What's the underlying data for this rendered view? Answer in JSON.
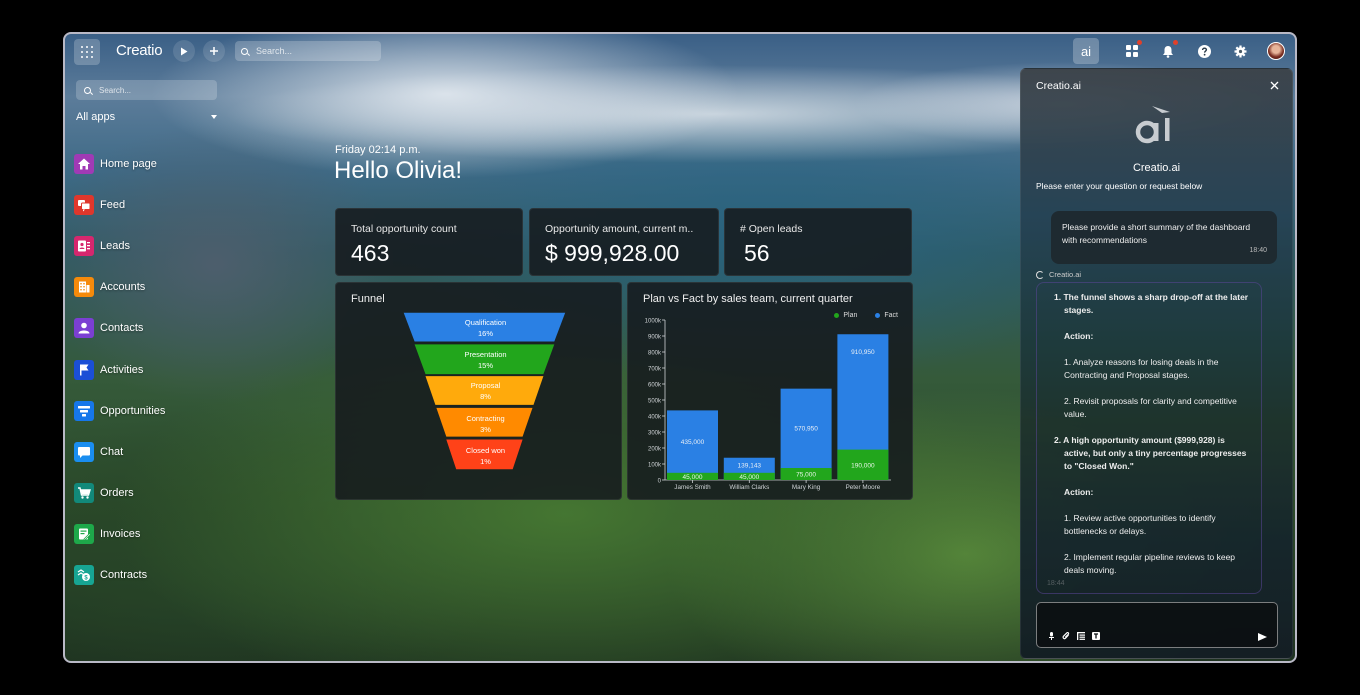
{
  "topbar": {
    "app_name": "Creatio",
    "run_icon": "play-icon",
    "add_icon": "plus-icon",
    "search_placeholder": "Search...",
    "ai_button_label": "ai",
    "icons": [
      "app-grid-icon",
      "bell-icon",
      "help-icon",
      "gear-icon",
      "avatar"
    ]
  },
  "sidebar": {
    "search_placeholder": "Search...",
    "section_label": "All apps",
    "items": [
      {
        "label": "Home page",
        "icon": "home-icon",
        "color": "#a03ab5"
      },
      {
        "label": "Feed",
        "icon": "feed-icon",
        "color": "#e0372c"
      },
      {
        "label": "Leads",
        "icon": "leads-icon",
        "color": "#d6276e"
      },
      {
        "label": "Accounts",
        "icon": "accounts-icon",
        "color": "#f58a0b"
      },
      {
        "label": "Contacts",
        "icon": "contacts-icon",
        "color": "#7b3fd3"
      },
      {
        "label": "Activities",
        "icon": "activities-icon",
        "color": "#1b4fd6"
      },
      {
        "label": "Opportunities",
        "icon": "opportunities-icon",
        "color": "#1677ea"
      },
      {
        "label": "Chat",
        "icon": "chat-icon",
        "color": "#1a8ef0"
      },
      {
        "label": "Orders",
        "icon": "orders-icon",
        "color": "#12897a"
      },
      {
        "label": "Invoices",
        "icon": "invoices-icon",
        "color": "#1ea84a"
      },
      {
        "label": "Contracts",
        "icon": "contracts-icon",
        "color": "#17a593"
      }
    ]
  },
  "greeting": {
    "time": "Friday 02:14 p.m.",
    "hello": "Hello Olivia!"
  },
  "kpis": [
    {
      "title": "Total opportunity count",
      "value": "463"
    },
    {
      "title": "Opportunity amount, current m..",
      "value": "$ 999,928.00"
    },
    {
      "title": "# Open leads",
      "value": "56"
    }
  ],
  "funnel": {
    "title": "Funnel",
    "stages": [
      {
        "label": "Qualification",
        "pct": "16%",
        "color": "#2a80e4"
      },
      {
        "label": "Presentation",
        "pct": "15%",
        "color": "#22a61c"
      },
      {
        "label": "Proposal",
        "pct": "8%",
        "color": "#ffaa0c"
      },
      {
        "label": "Contracting",
        "pct": "3%",
        "color": "#ff8a00"
      },
      {
        "label": "Closed won",
        "pct": "1%",
        "color": "#ff4218"
      }
    ]
  },
  "bar_chart": {
    "title": "Plan vs Fact by sales team, current quarter",
    "legend": [
      {
        "label": "Plan",
        "color": "#22a61c"
      },
      {
        "label": "Fact",
        "color": "#2a80e4"
      }
    ]
  },
  "chart_data": {
    "type": "bar",
    "title": "Plan vs Fact by sales team, current quarter",
    "categories": [
      "James Smith",
      "William Clarks",
      "Mary King",
      "Peter Moore"
    ],
    "series": [
      {
        "name": "Plan",
        "color": "#22a61c",
        "values": [
          45000,
          45000,
          75000,
          190000
        ]
      },
      {
        "name": "Fact",
        "color": "#2a80e4",
        "values": [
          435000,
          139143,
          570950,
          910950
        ]
      }
    ],
    "yticks": [
      "0",
      "100k",
      "200k",
      "300k",
      "400k",
      "500k",
      "600k",
      "700k",
      "800k",
      "900k",
      "1000k"
    ],
    "ylim": [
      0,
      1000000
    ],
    "xlabel": "",
    "ylabel": "",
    "legend_position": "top-right",
    "grid": false,
    "stacked_overlay": true,
    "bar_labels": {
      "Plan": [
        "45,000",
        "45,000",
        "75,000",
        "190,000"
      ],
      "Fact": [
        "435,000",
        "139,143",
        "570,950",
        "910,950"
      ]
    }
  },
  "ai_panel": {
    "header_title": "Creatio.ai",
    "close_icon": "close-icon",
    "logo_text": "ai",
    "name": "Creatio.ai",
    "prompt": "Please enter your question or request below",
    "user_message": {
      "text": "Please provide a short summary of the dashboard with recommendations",
      "time": "18:40"
    },
    "bot_label": "Creatio.ai",
    "bot_message": {
      "point1_title": "1. The funnel shows a sharp drop-off at the later stages.",
      "point1_action": "Action:",
      "point1_a": "1. Analyze reasons for losing deals in the Contracting and Proposal stages.",
      "point1_b": "2. Revisit proposals for clarity and competitive value.",
      "point2_title": "2.  A high opportunity amount ($999,928) is active, but only a tiny percentage progresses to \"Closed Won.\"",
      "point2_action": "Action:",
      "point2_a": "1. Review active opportunities to identify bottlenecks or delays.",
      "point2_b": "2. Implement regular pipeline reviews to keep deals moving.",
      "time": "18:44"
    },
    "input": {
      "value": "",
      "tools": [
        "microphone-icon",
        "attach-icon",
        "list-icon",
        "text-format-icon"
      ],
      "send_icon": "send-icon"
    }
  }
}
